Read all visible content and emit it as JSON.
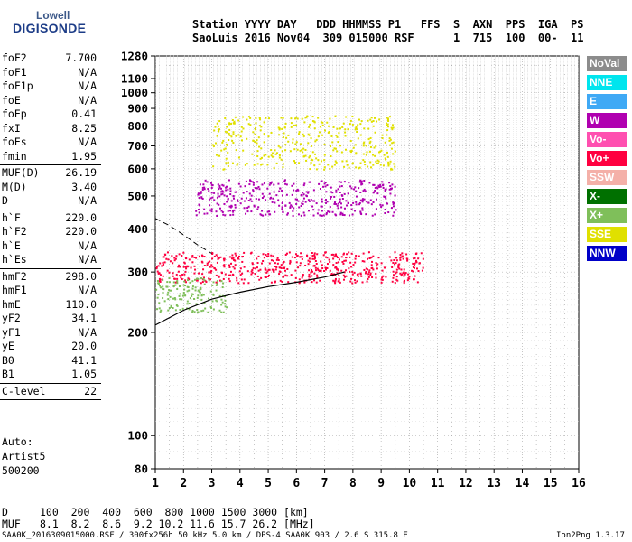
{
  "logo": {
    "line1": "Lowell",
    "line2": "DIGISONDE"
  },
  "header": {
    "labels": "Station YYYY DAY   DDD HHMMSS P1   FFS  S  AXN  PPS  IGA  PS",
    "values": "SaoLuis 2016 Nov04  309 015000 RSF      1  715  100  00-  11"
  },
  "params": [
    {
      "name": "foF2",
      "value": "7.700"
    },
    {
      "name": "foF1",
      "value": "N/A"
    },
    {
      "name": "foF1p",
      "value": "N/A"
    },
    {
      "name": "foE",
      "value": "N/A"
    },
    {
      "name": "foEp",
      "value": "0.41"
    },
    {
      "name": "fxI",
      "value": "8.25"
    },
    {
      "name": "foEs",
      "value": "N/A"
    },
    {
      "name": "fmin",
      "value": "1.95"
    },
    {
      "name": "MUF(D)",
      "value": "26.19"
    },
    {
      "name": "M(D)",
      "value": "3.40"
    },
    {
      "name": "D",
      "value": "N/A"
    },
    {
      "name": "h`F",
      "value": "220.0"
    },
    {
      "name": "h`F2",
      "value": "220.0"
    },
    {
      "name": "h`E",
      "value": "N/A"
    },
    {
      "name": "h`Es",
      "value": "N/A"
    },
    {
      "name": "hmF2",
      "value": "298.0"
    },
    {
      "name": "hmF1",
      "value": "N/A"
    },
    {
      "name": "hmE",
      "value": "110.0"
    },
    {
      "name": "yF2",
      "value": "34.1"
    },
    {
      "name": "yF1",
      "value": "N/A"
    },
    {
      "name": "yE",
      "value": "20.0"
    },
    {
      "name": "B0",
      "value": "41.1"
    },
    {
      "name": "B1",
      "value": "1.05"
    },
    {
      "name": "C-level",
      "value": "22"
    }
  ],
  "auto": {
    "line1": "Auto:",
    "line2": "Artist5",
    "line3": "500200"
  },
  "legend": [
    {
      "label": "NoVal",
      "color": "#8c8c8c"
    },
    {
      "label": "NNE",
      "color": "#00e5ee"
    },
    {
      "label": "E",
      "color": "#3fa9f5"
    },
    {
      "label": "W",
      "color": "#b000b0"
    },
    {
      "label": "Vo-",
      "color": "#ff4fb0"
    },
    {
      "label": "Vo+",
      "color": "#ff0040"
    },
    {
      "label": "SSW",
      "color": "#f4b0a8"
    },
    {
      "label": "X-",
      "color": "#007000"
    },
    {
      "label": "X+",
      "color": "#7fbf5a"
    },
    {
      "label": "SSE",
      "color": "#e0e000"
    },
    {
      "label": "NNW",
      "color": "#0000c8"
    }
  ],
  "bottom": {
    "d_label": "D",
    "d_values": "100  200  400  600  800 1000 1500 3000 [km]",
    "muf_label": "MUF",
    "muf_values": "8.1  8.2  8.6  9.2 10.2 11.6 15.7 26.2 [MHz]"
  },
  "footer": {
    "left": "SAA0K_2016309015000.RSF / 300fx256h 50 kHz 5.0 km / DPS-4 SAA0K 903 / 2.6 S 315.8 E",
    "right": "Ion2Png 1.3.17"
  },
  "chart_data": {
    "type": "scatter",
    "title": "",
    "xlabel": "",
    "ylabel": "",
    "xlim": [
      1,
      16
    ],
    "ylim": [
      80,
      1280
    ],
    "x_scale": "linear",
    "y_scale": "log",
    "x_ticks": [
      "1",
      "2",
      "3",
      "4",
      "5",
      "6",
      "7",
      "8",
      "9",
      "10",
      "11",
      "12",
      "13",
      "14",
      "15",
      "16"
    ],
    "y_ticks": [
      80,
      100,
      200,
      300,
      400,
      500,
      600,
      700,
      800,
      900,
      1000,
      1100,
      1280
    ],
    "grid": "dotted",
    "trace_bands": [
      {
        "name": "Vo+",
        "x_start": 1.0,
        "x_end": 10.5,
        "h_low": 280,
        "h_high": 345
      },
      {
        "name": "W",
        "x_start": 2.4,
        "x_end": 9.5,
        "h_low": 440,
        "h_high": 560
      },
      {
        "name": "SSE",
        "x_start": 3.0,
        "x_end": 9.5,
        "h_low": 600,
        "h_high": 860
      },
      {
        "name": "X+",
        "x_start": 1.0,
        "x_end": 3.5,
        "h_low": 230,
        "h_high": 290
      }
    ],
    "profile_lines": [
      {
        "name": "solid",
        "x": [
          1.0,
          2.0,
          3.0,
          4.0,
          5.0,
          6.0,
          7.0,
          7.7
        ],
        "y": [
          210,
          232,
          250,
          262,
          272,
          280,
          290,
          300
        ]
      },
      {
        "name": "dashed",
        "x": [
          1.0,
          1.5,
          2.0,
          2.5,
          3.0
        ],
        "y": [
          430,
          410,
          385,
          360,
          340
        ]
      }
    ]
  }
}
